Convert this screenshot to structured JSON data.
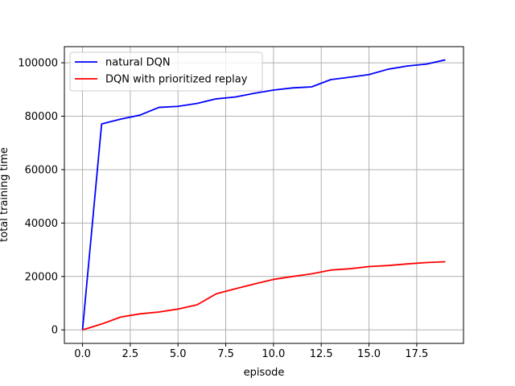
{
  "chart_data": {
    "type": "line",
    "title": "",
    "xlabel": "episode",
    "ylabel": "total training time",
    "xlim": [
      -0.95,
      19.95
    ],
    "ylim": [
      -5050,
      106050
    ],
    "grid": true,
    "legend_position": "top-left",
    "x_ticks": [
      0.0,
      2.5,
      5.0,
      7.5,
      10.0,
      12.5,
      15.0,
      17.5
    ],
    "x_tick_labels": [
      "0.0",
      "2.5",
      "5.0",
      "7.5",
      "10.0",
      "12.5",
      "15.0",
      "17.5"
    ],
    "y_ticks": [
      0,
      20000,
      40000,
      60000,
      80000,
      100000
    ],
    "y_tick_labels": [
      "0",
      "20000",
      "40000",
      "60000",
      "80000",
      "100000"
    ],
    "x": [
      0,
      1,
      2,
      3,
      4,
      5,
      6,
      7,
      8,
      9,
      10,
      11,
      12,
      13,
      14,
      15,
      16,
      17,
      18,
      19
    ],
    "series": [
      {
        "name": "natural DQN",
        "color": "#0000ff",
        "values": [
          0,
          77100,
          78900,
          80400,
          83300,
          83700,
          84800,
          86500,
          87200,
          88600,
          89800,
          90600,
          91000,
          93700,
          94600,
          95600,
          97600,
          98800,
          99500,
          101100
        ]
      },
      {
        "name": "DQN with prioritized replay",
        "color": "#ff0000",
        "values": [
          0,
          2200,
          4800,
          6000,
          6700,
          7800,
          9400,
          13500,
          15400,
          17200,
          18900,
          20000,
          21000,
          22400,
          22900,
          23700,
          24100,
          24700,
          25200,
          25500
        ]
      }
    ]
  }
}
